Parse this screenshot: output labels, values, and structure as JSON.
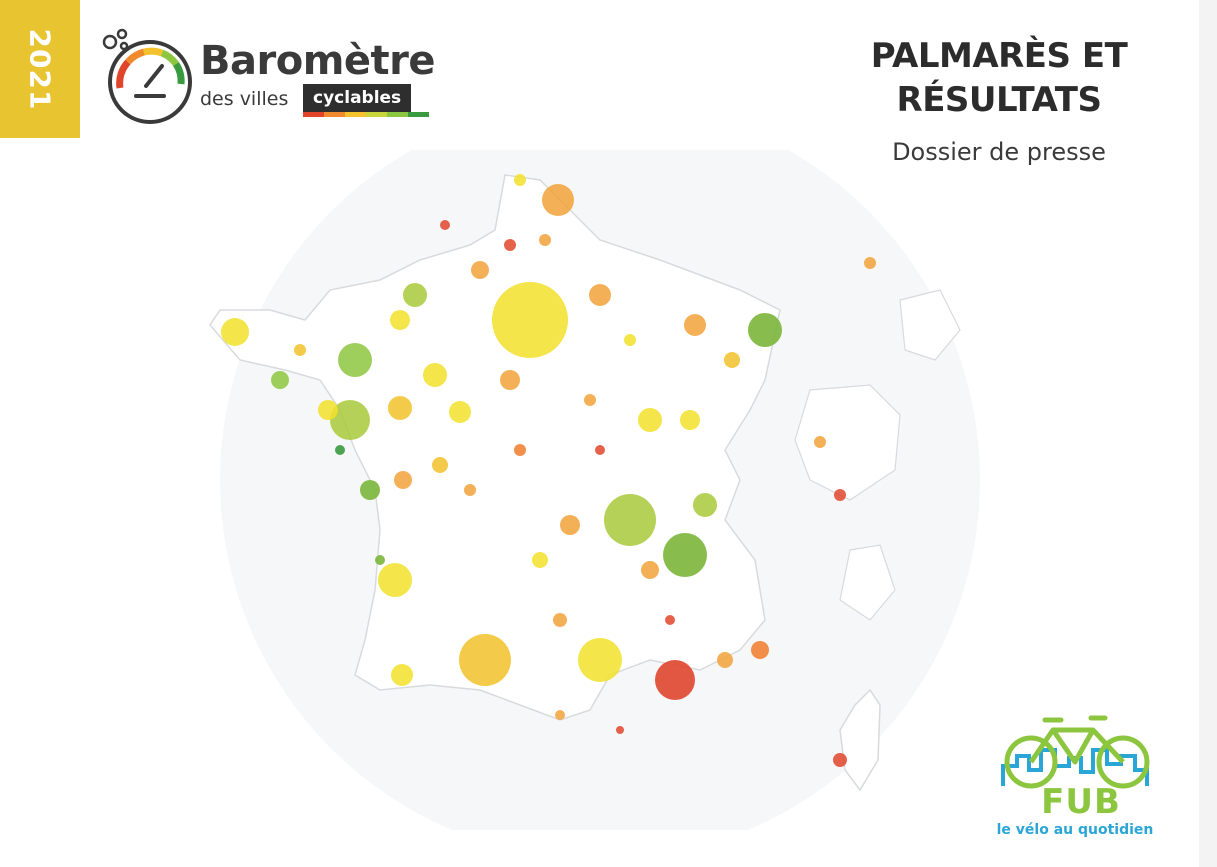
{
  "year": "2021",
  "logo": {
    "title": "Baromètre",
    "subtitle": "des villes",
    "badge": "cyclables",
    "gauge_colors": [
      "#e0452c",
      "#f08a2c",
      "#f4c22d",
      "#8dc63f",
      "#3a9a3f"
    ]
  },
  "header": {
    "title_line1": "PALMARÈS ET",
    "title_line2": "RÉSULTATS",
    "subtitle": "Dossier de presse"
  },
  "fub": {
    "name": "FUB",
    "tagline": "le vélo au quotidien"
  },
  "colors": {
    "year_tab": "#e8c430",
    "green": "#7bb63b",
    "light_green": "#a9c93a",
    "yellow": "#f2e02a",
    "orange": "#f2a23a",
    "dark_orange": "#ee7b2c",
    "red": "#e0452c",
    "fub_green": "#8cc63e",
    "fub_blue": "#2aa6d6"
  }
}
